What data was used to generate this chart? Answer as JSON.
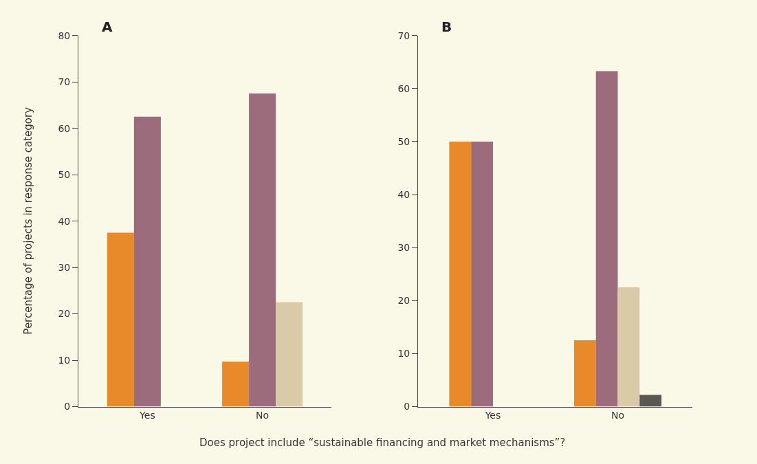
{
  "chart_data": [
    {
      "type": "bar",
      "title": "A",
      "ylabel": "Percentage of projects in response category",
      "xlabel": "Does project include “sustainable financing and market mechanisms”?",
      "categories": [
        "Yes",
        "No"
      ],
      "ylim": [
        0,
        80
      ],
      "yticks": [
        0,
        10,
        20,
        30,
        40,
        50,
        60,
        70,
        80
      ],
      "grid": false,
      "series": [
        {
          "color": "#e8892a",
          "values": [
            37.5,
            9.7
          ]
        },
        {
          "color": "#9c6b7c",
          "values": [
            62.5,
            67.5
          ]
        },
        {
          "color": "#d9cba8",
          "values": [
            null,
            22.5
          ]
        }
      ]
    },
    {
      "type": "bar",
      "title": "B",
      "categories": [
        "Yes",
        "No"
      ],
      "ylim": [
        0,
        70
      ],
      "yticks": [
        0,
        10,
        20,
        30,
        40,
        50,
        60,
        70
      ],
      "grid": false,
      "series": [
        {
          "color": "#e8892a",
          "values": [
            50,
            12.5
          ]
        },
        {
          "color": "#9c6b7c",
          "values": [
            50,
            63.3
          ]
        },
        {
          "color": "#d9cba8",
          "values": [
            null,
            22.5
          ]
        },
        {
          "color": "#5a5850",
          "values": [
            null,
            2.2
          ]
        }
      ]
    }
  ]
}
